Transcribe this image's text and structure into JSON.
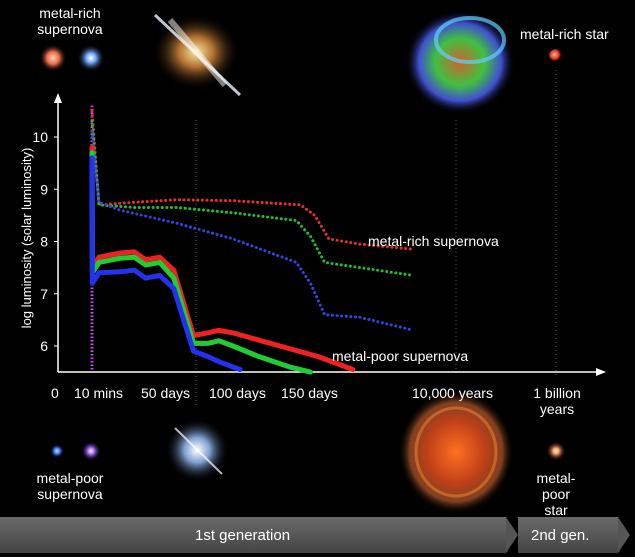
{
  "chart_data": {
    "type": "line",
    "ylabel": "log luminosity (solar luminosity)",
    "yticks": [
      6,
      7,
      8,
      9,
      10
    ],
    "ylim": [
      5.5,
      10.6
    ],
    "xticks": [
      "0",
      "10 mins",
      "50 days",
      "100 days",
      "150 days",
      "10,000 years",
      "1 billion years"
    ],
    "x_unit": "days",
    "series": [
      {
        "name": "metal-rich supernova",
        "style": "dotted",
        "color": "#e23030",
        "points": [
          [
            0.01,
            10.5
          ],
          [
            5,
            8.7
          ],
          [
            30,
            8.75
          ],
          [
            60,
            8.8
          ],
          [
            100,
            8.78
          ],
          [
            148,
            8.7
          ],
          [
            158,
            8.5
          ],
          [
            168,
            8.05
          ],
          [
            190,
            7.95
          ],
          [
            228,
            7.85
          ]
        ]
      },
      {
        "style": "dotted",
        "color": "#22bb33",
        "points": [
          [
            0.01,
            10.3
          ],
          [
            5,
            8.7
          ],
          [
            30,
            8.65
          ],
          [
            60,
            8.65
          ],
          [
            100,
            8.55
          ],
          [
            145,
            8.4
          ],
          [
            155,
            8.1
          ],
          [
            165,
            7.6
          ],
          [
            190,
            7.5
          ],
          [
            228,
            7.35
          ]
        ]
      },
      {
        "style": "dotted",
        "color": "#3344dd",
        "points": [
          [
            0.01,
            10.1
          ],
          [
            5,
            8.75
          ],
          [
            20,
            8.6
          ],
          [
            60,
            8.35
          ],
          [
            100,
            8.05
          ],
          [
            145,
            7.6
          ],
          [
            155,
            7.2
          ],
          [
            165,
            6.6
          ],
          [
            190,
            6.55
          ],
          [
            228,
            6.3
          ]
        ]
      },
      {
        "name": "metal-poor supernova",
        "style": "solid",
        "color": "#ee2222",
        "points": [
          [
            0.01,
            9.8
          ],
          [
            0.3,
            7.5
          ],
          [
            5,
            7.7
          ],
          [
            20,
            7.78
          ],
          [
            30,
            7.8
          ],
          [
            38,
            7.65
          ],
          [
            48,
            7.7
          ],
          [
            58,
            7.45
          ],
          [
            72,
            6.2
          ],
          [
            82,
            6.25
          ],
          [
            90,
            6.3
          ],
          [
            100,
            6.25
          ],
          [
            120,
            6.1
          ],
          [
            140,
            5.95
          ],
          [
            160,
            5.8
          ],
          [
            185,
            5.55
          ]
        ]
      },
      {
        "style": "solid",
        "color": "#22cc33",
        "points": [
          [
            0.01,
            9.7
          ],
          [
            0.3,
            7.4
          ],
          [
            5,
            7.6
          ],
          [
            20,
            7.68
          ],
          [
            30,
            7.7
          ],
          [
            38,
            7.55
          ],
          [
            48,
            7.6
          ],
          [
            58,
            7.3
          ],
          [
            72,
            6.05
          ],
          [
            82,
            6.05
          ],
          [
            90,
            6.1
          ],
          [
            100,
            6.0
          ],
          [
            118,
            5.8
          ],
          [
            140,
            5.6
          ],
          [
            155,
            5.5
          ]
        ]
      },
      {
        "style": "solid",
        "color": "#2233ee",
        "points": [
          [
            0.01,
            9.6
          ],
          [
            0.3,
            7.2
          ],
          [
            5,
            7.4
          ],
          [
            20,
            7.42
          ],
          [
            30,
            7.45
          ],
          [
            38,
            7.3
          ],
          [
            48,
            7.35
          ],
          [
            58,
            7.1
          ],
          [
            72,
            5.9
          ],
          [
            82,
            5.8
          ],
          [
            90,
            5.7
          ],
          [
            105,
            5.55
          ]
        ]
      }
    ],
    "purple_spike": {
      "color": "#cc44ff",
      "ymax": 10.6
    },
    "legend_placement": "inline labels"
  },
  "labels": {
    "top_left_sn": "metal-rich\nsupernova",
    "top_right_star": "metal-rich star",
    "bottom_left_sn": "metal-poor\nsupernova",
    "bottom_right_star": "metal-poor\nstar",
    "metal_rich_line": "metal-rich supernova",
    "metal_poor_line": "metal-poor supernova"
  },
  "timeline": {
    "first": "1st generation",
    "second": "2nd gen."
  },
  "colors": {
    "background": "#000000",
    "axis": "#ffffff"
  }
}
